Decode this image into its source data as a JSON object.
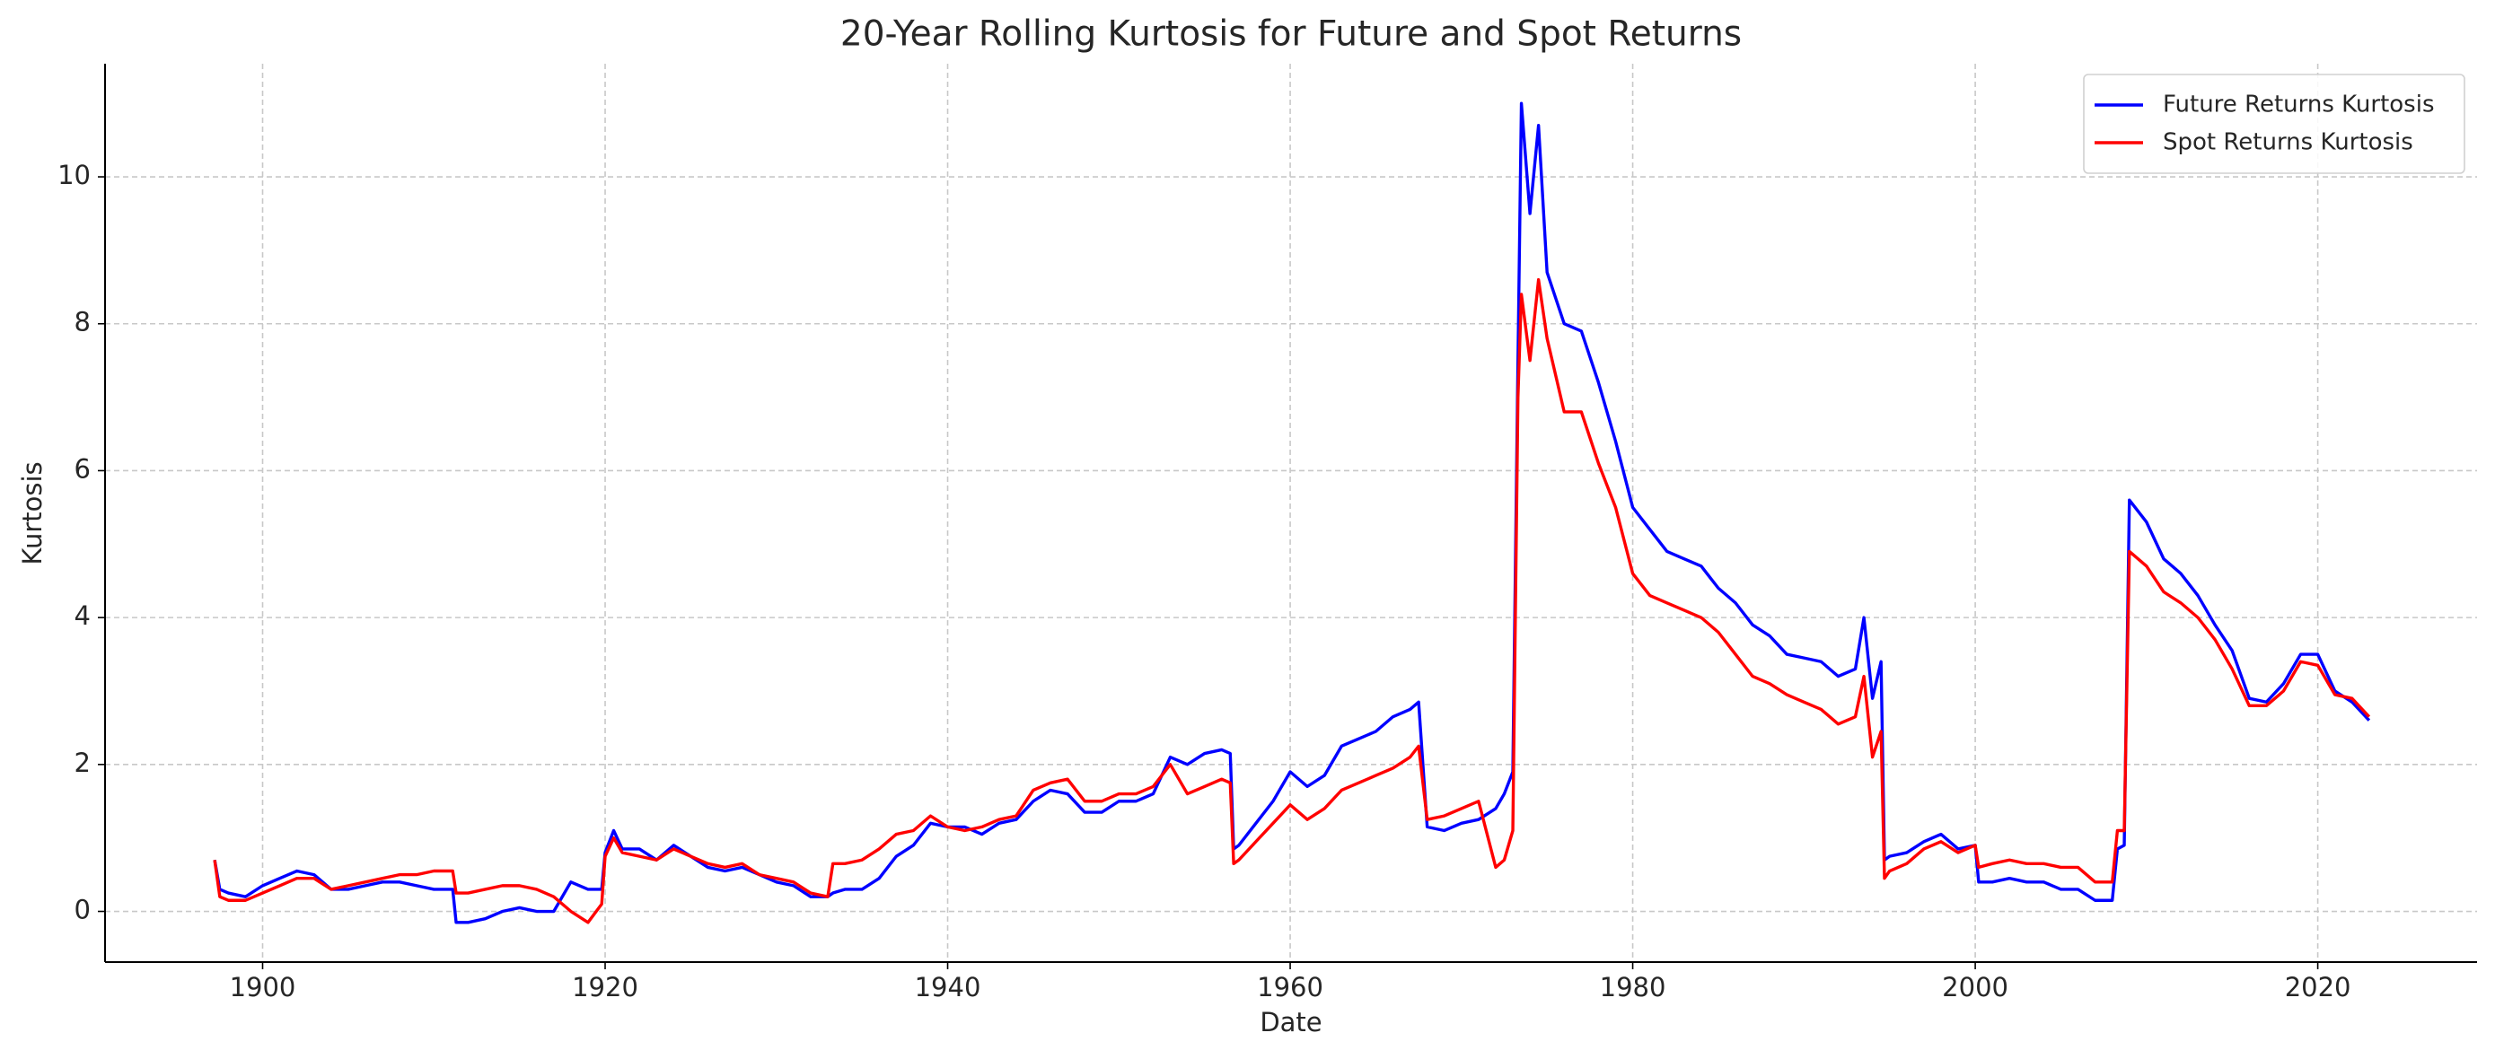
{
  "chart_data": {
    "type": "line",
    "title": "20-Year Rolling Kurtosis for Future and Spot Returns",
    "xlabel": "Date",
    "ylabel": "Kurtosis",
    "x": [
      1897.2,
      1897.5,
      1898,
      1899,
      1900,
      1901,
      1902,
      1903,
      1904,
      1905,
      1906,
      1907,
      1908,
      1909,
      1910,
      1911.1,
      1911.3,
      1912,
      1913,
      1914,
      1915,
      1916,
      1917,
      1918,
      1919,
      1919.8,
      1920,
      1920.5,
      1921,
      1922,
      1923,
      1924,
      1925,
      1926,
      1927,
      1928,
      1929,
      1930,
      1931,
      1932,
      1933,
      1933.3,
      1934,
      1935,
      1936,
      1937,
      1938,
      1939,
      1940,
      1941,
      1942,
      1943,
      1944,
      1945,
      1946,
      1947,
      1948,
      1949,
      1950,
      1951,
      1952,
      1953,
      1954,
      1955,
      1956,
      1956.5,
      1956.7,
      1957,
      1958,
      1959,
      1960,
      1961,
      1962,
      1963,
      1964,
      1965,
      1966,
      1967,
      1967.5,
      1968,
      1969,
      1970,
      1971,
      1972,
      1972.5,
      1973,
      1973.3,
      1973.5,
      1974,
      1974.5,
      1975,
      1976,
      1977,
      1978,
      1979,
      1980,
      1981,
      1982,
      1983,
      1984,
      1985,
      1986,
      1987,
      1988,
      1989,
      1990,
      1991,
      1992,
      1993,
      1993.5,
      1994,
      1994.5,
      1994.7,
      1995,
      1996,
      1997,
      1998,
      1999,
      2000,
      2000.2,
      2001,
      2002,
      2003,
      2004,
      2005,
      2006,
      2007,
      2008,
      2008.3,
      2008.7,
      2009,
      2010,
      2011,
      2012,
      2013,
      2014,
      2015,
      2016,
      2017,
      2018,
      2019,
      2020,
      2021,
      2022,
      2023
    ],
    "series": [
      {
        "name": "Future Returns Kurtosis",
        "color": "#0000ff",
        "values": [
          0.7,
          0.3,
          0.25,
          0.2,
          0.35,
          0.45,
          0.55,
          0.5,
          0.3,
          0.3,
          0.35,
          0.4,
          0.4,
          0.35,
          0.3,
          0.3,
          -0.15,
          -0.15,
          -0.1,
          0.0,
          0.05,
          0.0,
          0.0,
          0.4,
          0.3,
          0.3,
          0.8,
          1.1,
          0.85,
          0.85,
          0.7,
          0.9,
          0.75,
          0.6,
          0.55,
          0.6,
          0.5,
          0.4,
          0.35,
          0.2,
          0.2,
          0.25,
          0.3,
          0.3,
          0.45,
          0.75,
          0.9,
          1.2,
          1.15,
          1.15,
          1.05,
          1.2,
          1.25,
          1.5,
          1.65,
          1.6,
          1.35,
          1.35,
          1.5,
          1.5,
          1.6,
          2.1,
          2.0,
          2.15,
          2.2,
          2.15,
          0.85,
          0.9,
          1.2,
          1.5,
          1.9,
          1.7,
          1.85,
          2.25,
          2.35,
          2.45,
          2.65,
          2.75,
          2.85,
          1.15,
          1.1,
          1.2,
          1.25,
          1.4,
          1.6,
          1.9,
          7.5,
          11.0,
          9.5,
          10.7,
          8.7,
          8.0,
          7.9,
          7.2,
          6.4,
          5.5,
          5.2,
          4.9,
          4.8,
          4.7,
          4.4,
          4.2,
          3.9,
          3.75,
          3.5,
          3.45,
          3.4,
          3.2,
          3.3,
          4.0,
          2.9,
          3.4,
          0.7,
          0.75,
          0.8,
          0.95,
          1.05,
          0.85,
          0.9,
          0.4,
          0.4,
          0.45,
          0.4,
          0.4,
          0.3,
          0.3,
          0.15,
          0.15,
          0.85,
          0.9,
          5.6,
          5.3,
          4.8,
          4.6,
          4.3,
          3.9,
          3.55,
          2.9,
          2.85,
          3.1,
          3.5,
          3.5,
          3.0,
          2.85,
          2.6
        ]
      },
      {
        "name": "Spot Returns Kurtosis",
        "color": "#ff0000",
        "values": [
          0.7,
          0.2,
          0.15,
          0.15,
          0.25,
          0.35,
          0.45,
          0.45,
          0.3,
          0.35,
          0.4,
          0.45,
          0.5,
          0.5,
          0.55,
          0.55,
          0.25,
          0.25,
          0.3,
          0.35,
          0.35,
          0.3,
          0.2,
          0.0,
          -0.15,
          0.1,
          0.75,
          1.0,
          0.8,
          0.75,
          0.7,
          0.85,
          0.75,
          0.65,
          0.6,
          0.65,
          0.5,
          0.45,
          0.4,
          0.25,
          0.2,
          0.65,
          0.65,
          0.7,
          0.85,
          1.05,
          1.1,
          1.3,
          1.15,
          1.1,
          1.15,
          1.25,
          1.3,
          1.65,
          1.75,
          1.8,
          1.5,
          1.5,
          1.6,
          1.6,
          1.7,
          2.0,
          1.6,
          1.7,
          1.8,
          1.75,
          0.65,
          0.7,
          0.95,
          1.2,
          1.45,
          1.25,
          1.4,
          1.65,
          1.75,
          1.85,
          1.95,
          2.1,
          2.25,
          1.25,
          1.3,
          1.4,
          1.5,
          0.6,
          0.7,
          1.1,
          7.0,
          8.4,
          7.5,
          8.6,
          7.8,
          6.8,
          6.8,
          6.1,
          5.5,
          4.6,
          4.3,
          4.2,
          4.1,
          4.0,
          3.8,
          3.5,
          3.2,
          3.1,
          2.95,
          2.85,
          2.75,
          2.55,
          2.65,
          3.2,
          2.1,
          2.45,
          0.45,
          0.55,
          0.65,
          0.85,
          0.95,
          0.8,
          0.9,
          0.6,
          0.65,
          0.7,
          0.65,
          0.65,
          0.6,
          0.6,
          0.4,
          0.4,
          1.1,
          1.1,
          4.9,
          4.7,
          4.35,
          4.2,
          4.0,
          3.7,
          3.3,
          2.8,
          2.8,
          3.0,
          3.4,
          3.35,
          2.95,
          2.9,
          2.65
        ]
      }
    ],
    "xlim": [
      1890.8,
      2029.3
    ],
    "ylim": [
      -0.69,
      11.54
    ],
    "xticks": [
      1900,
      1920,
      1940,
      1960,
      1980,
      2000,
      2020
    ],
    "yticks": [
      0,
      2,
      4,
      6,
      8,
      10
    ],
    "grid": true,
    "legend": "upper right"
  }
}
